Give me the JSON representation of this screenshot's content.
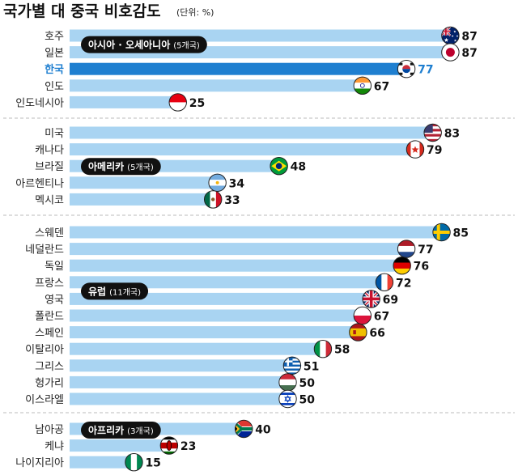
{
  "header": {
    "title": "국가별 대 중국 비호감도",
    "unit": "(단위: %)"
  },
  "colors": {
    "bar": "#a9d4f2",
    "highlight_bar": "#1f7fd0",
    "highlight_text": "#1f7fd0",
    "label_badge": "#111111",
    "divider": "#bbbbbb"
  },
  "chart_data": {
    "type": "bar",
    "orientation": "horizontal",
    "title": "국가별 대 중국 비호감도",
    "unit": "(단위: %)",
    "xlim": [
      0,
      100
    ],
    "grid": false,
    "groups": [
      {
        "name": "아시아 · 오세아니아",
        "count_label": "(5개국)",
        "items": [
          {
            "label": "호주",
            "value": 87,
            "flag": "australia-flag-icon"
          },
          {
            "label": "일본",
            "value": 87,
            "flag": "japan-flag-icon"
          },
          {
            "label": "한국",
            "value": 77,
            "flag": "korea-flag-icon",
            "highlight": true
          },
          {
            "label": "인도",
            "value": 67,
            "flag": "india-flag-icon"
          },
          {
            "label": "인도네시아",
            "value": 25,
            "flag": "indonesia-flag-icon"
          }
        ]
      },
      {
        "name": "아메리카",
        "count_label": "(5개국)",
        "items": [
          {
            "label": "미국",
            "value": 83,
            "flag": "usa-flag-icon"
          },
          {
            "label": "캐나다",
            "value": 79,
            "flag": "canada-flag-icon"
          },
          {
            "label": "브라질",
            "value": 48,
            "flag": "brazil-flag-icon"
          },
          {
            "label": "아르헨티나",
            "value": 34,
            "flag": "argentina-flag-icon"
          },
          {
            "label": "멕시코",
            "value": 33,
            "flag": "mexico-flag-icon"
          }
        ]
      },
      {
        "name": "유럽",
        "count_label": "(11개국)",
        "items": [
          {
            "label": "스웨덴",
            "value": 85,
            "flag": "sweden-flag-icon"
          },
          {
            "label": "네덜란드",
            "value": 77,
            "flag": "netherlands-flag-icon"
          },
          {
            "label": "독일",
            "value": 76,
            "flag": "germany-flag-icon"
          },
          {
            "label": "프랑스",
            "value": 72,
            "flag": "france-flag-icon"
          },
          {
            "label": "영국",
            "value": 69,
            "flag": "uk-flag-icon"
          },
          {
            "label": "폴란드",
            "value": 67,
            "flag": "poland-flag-icon"
          },
          {
            "label": "스페인",
            "value": 66,
            "flag": "spain-flag-icon"
          },
          {
            "label": "이탈리아",
            "value": 58,
            "flag": "italy-flag-icon"
          },
          {
            "label": "그리스",
            "value": 51,
            "flag": "greece-flag-icon"
          },
          {
            "label": "헝가리",
            "value": 50,
            "flag": "hungary-flag-icon"
          },
          {
            "label": "이스라엘",
            "value": 50,
            "flag": "israel-flag-icon"
          }
        ]
      },
      {
        "name": "아프리카",
        "count_label": "(3개국)",
        "items": [
          {
            "label": "남아공",
            "value": 40,
            "flag": "south-africa-flag-icon"
          },
          {
            "label": "케냐",
            "value": 23,
            "flag": "kenya-flag-icon"
          },
          {
            "label": "나이지리아",
            "value": 15,
            "flag": "nigeria-flag-icon"
          }
        ]
      }
    ]
  }
}
